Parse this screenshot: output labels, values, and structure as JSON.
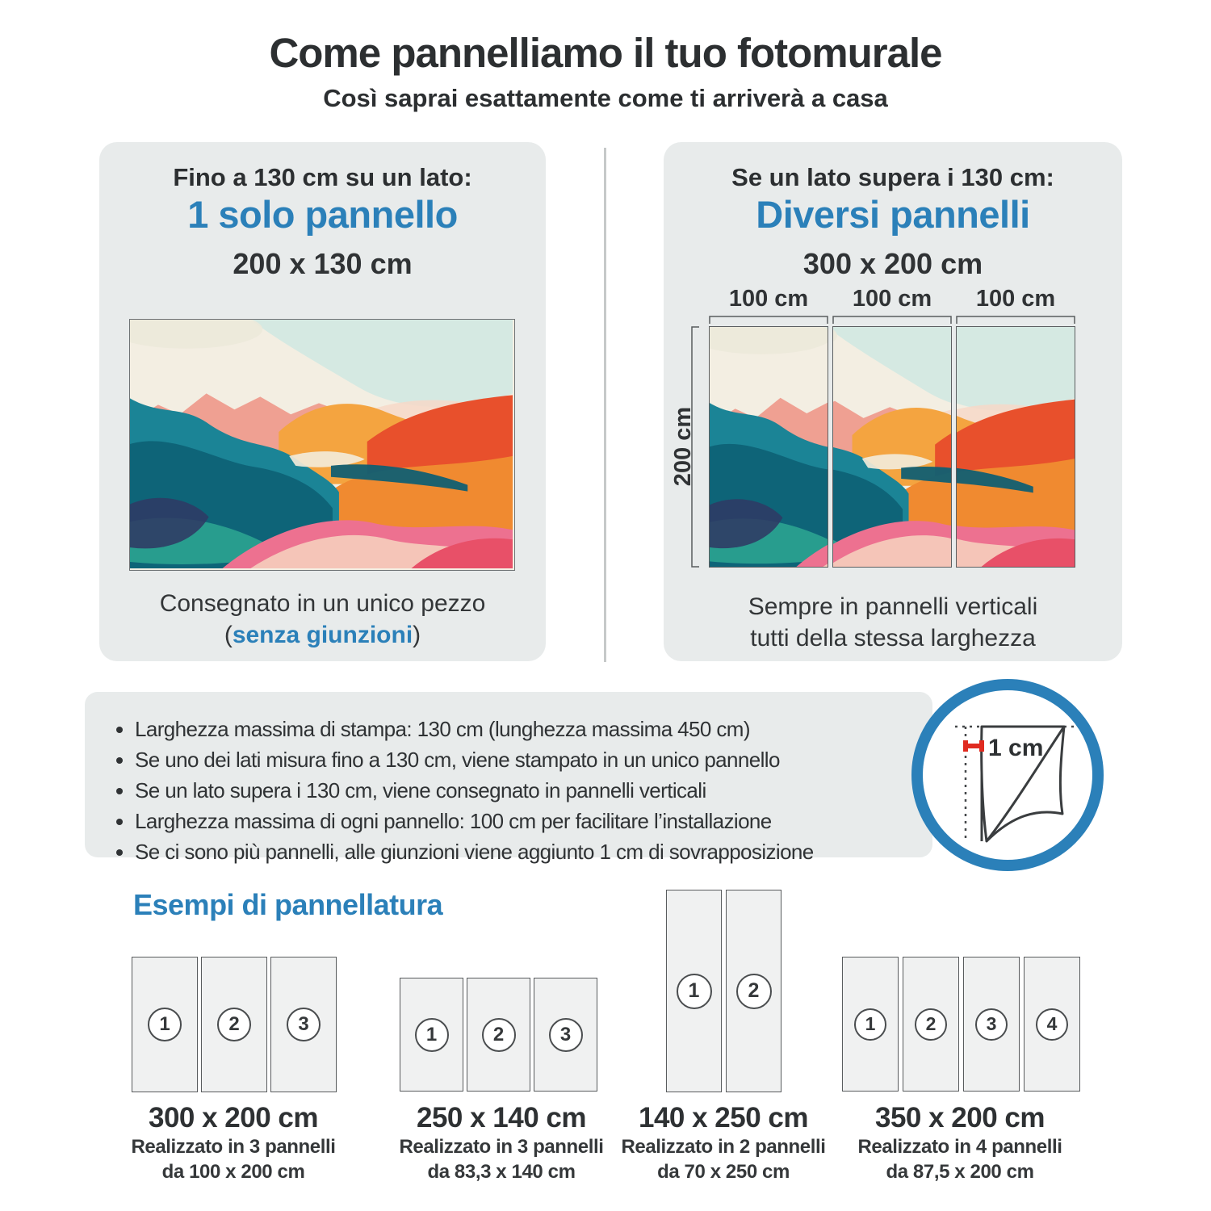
{
  "page": {
    "title": "Come pannelliamo il tuo fotomurale",
    "subtitle": "Così saprai esattamente come ti arriverà a casa"
  },
  "single_panel_card": {
    "condition": "Fino a 130 cm su un lato:",
    "headline": "1 solo pannello",
    "size": "200 x 130 cm",
    "note_line1": "Consegnato in un unico pezzo",
    "note_paren_open": "(",
    "note_highlight": "senza giunzioni",
    "note_paren_close": ")"
  },
  "multi_panel_card": {
    "condition": "Se un lato supera i 130 cm:",
    "headline": "Diversi pannelli",
    "size": "300 x 200 cm",
    "width_labels": [
      "100 cm",
      "100 cm",
      "100 cm"
    ],
    "height_label": "200 cm",
    "note_line1": "Sempre in pannelli verticali",
    "note_line2": "tutti della stessa larghezza"
  },
  "info_bar": {
    "bullets": [
      "Larghezza massima di stampa: 130 cm (lunghezza massima 450 cm)",
      "Se uno dei lati misura fino a 130 cm, viene stampato in un unico pannello",
      "Se un lato supera i 130 cm, viene consegnato in pannelli verticali",
      "Larghezza massima di ogni pannello: 100 cm per facilitare l’installazione",
      "Se ci sono più pannelli, alle giunzioni viene aggiunto 1 cm di sovrapposizione"
    ],
    "overlap_icon_label": "1 cm"
  },
  "examples_section": {
    "heading": "Esempi di pannellatura",
    "examples": [
      {
        "panels": [
          "1",
          "2",
          "3"
        ],
        "size": "300 x 200 cm",
        "detail_line1": "Realizzato in 3 pannelli",
        "detail_line2": "da 100 x 200 cm"
      },
      {
        "panels": [
          "1",
          "2",
          "3"
        ],
        "size": "250 x 140 cm",
        "detail_line1": "Realizzato in 3 pannelli",
        "detail_line2": "da 83,3 x 140 cm"
      },
      {
        "panels": [
          "1",
          "2"
        ],
        "size": "140 x 250 cm",
        "detail_line1": "Realizzato in 2 pannelli",
        "detail_line2": "da 70 x 250 cm"
      },
      {
        "panels": [
          "1",
          "2",
          "3",
          "4"
        ],
        "size": "350 x 200 cm",
        "detail_line1": "Realizzato in 4 pannelli",
        "detail_line2": "da 87,5 x 200 cm"
      }
    ]
  },
  "colors": {
    "accent_blue": "#2b80b9",
    "marker_red": "#e02b20",
    "card_bg": "#e8ebeb",
    "text_dark": "#2e3133"
  }
}
